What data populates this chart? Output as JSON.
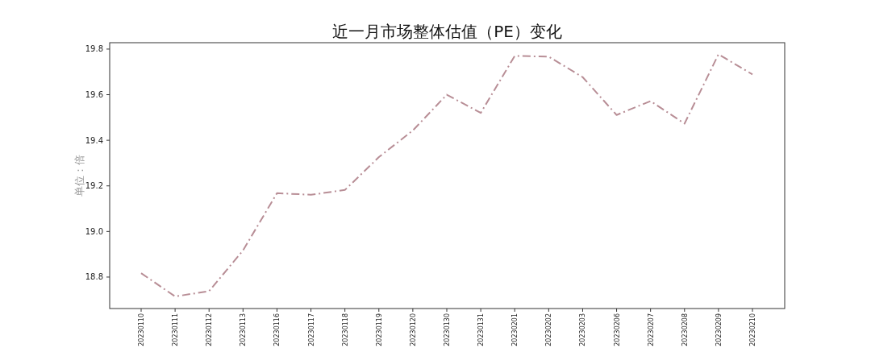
{
  "chart_data": {
    "type": "line",
    "title": "近一月市场整体估值（PE）变化",
    "ylabel": "单位：倍",
    "categories": [
      "20230110",
      "20230111",
      "20230112",
      "20230113",
      "20230116",
      "20230117",
      "20230118",
      "20230119",
      "20230120",
      "20230130",
      "20230131",
      "20230201",
      "20230202",
      "20230203",
      "20230206",
      "20230207",
      "20230208",
      "20230209",
      "20230210"
    ],
    "series": [
      {
        "color": "#b88e96",
        "values": [
          18.817,
          18.715,
          18.738,
          18.917,
          19.168,
          19.161,
          19.182,
          19.326,
          19.443,
          19.6,
          19.52,
          19.77,
          19.767,
          19.677,
          19.511,
          19.572,
          19.473,
          19.777,
          19.689
        ]
      }
    ],
    "ylim": [
      18.662,
      19.828
    ],
    "yticks": [
      {
        "value": 18.8,
        "label": "18.8"
      },
      {
        "value": 19.0,
        "label": "19.0"
      },
      {
        "value": 19.2,
        "label": "19.2"
      },
      {
        "value": 19.4,
        "label": "19.4"
      },
      {
        "value": 19.6,
        "label": "19.6"
      },
      {
        "value": 19.8,
        "label": "19.8"
      }
    ],
    "line_style": "dashdot"
  }
}
